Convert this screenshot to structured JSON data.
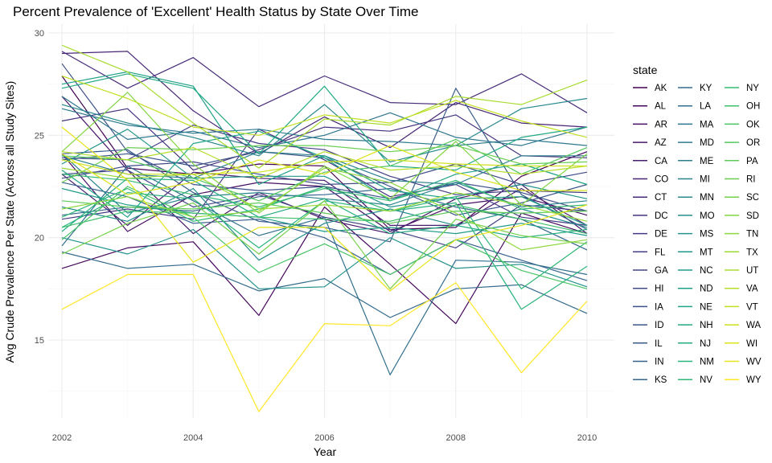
{
  "chart_data": {
    "type": "line",
    "title": "Percent Prevalence of 'Excellent' Health Status by State Over Time",
    "xlabel": "Year",
    "ylabel": "Avg Crude Prevalence Per State (Across all Study Sites)",
    "x": [
      2002,
      2003,
      2004,
      2005,
      2006,
      2007,
      2008,
      2009,
      2010
    ],
    "xticks": [
      "2002",
      "2004",
      "2006",
      "2008",
      "2010"
    ],
    "yticks": [
      "15",
      "20",
      "25",
      "30"
    ],
    "xlim": [
      2002,
      2010
    ],
    "ylim": [
      11.4,
      29.6
    ],
    "grid": true,
    "legend_title": "state",
    "legend_position": "right",
    "series": [
      {
        "name": "AK",
        "color": "#440154",
        "values": [
          27.9,
          23.4,
          23.1,
          23.6,
          23.5,
          20.4,
          20.5,
          23.0,
          24.2
        ]
      },
      {
        "name": "AL",
        "color": "#46085C",
        "values": [
          18.5,
          19.5,
          19.8,
          16.2,
          21.5,
          18.7,
          15.8,
          21.2,
          20.2
        ]
      },
      {
        "name": "AR",
        "color": "#471063",
        "values": [
          24.1,
          20.3,
          22.1,
          22.7,
          22.5,
          20.3,
          21.6,
          22.0,
          21.1
        ]
      },
      {
        "name": "AZ",
        "color": "#481769",
        "values": [
          26.9,
          23.3,
          20.2,
          22.2,
          20.9,
          20.2,
          21.9,
          22.6,
          20.2
        ]
      },
      {
        "name": "CA",
        "color": "#481E70",
        "values": [
          23.1,
          20.6,
          23.2,
          22.9,
          22.8,
          20.6,
          20.6,
          22.4,
          20.6
        ]
      },
      {
        "name": "CO",
        "color": "#482575",
        "values": [
          29.0,
          29.1,
          26.2,
          24.1,
          25.9,
          24.4,
          26.6,
          25.6,
          25.4
        ]
      },
      {
        "name": "CT",
        "color": "#472C7A",
        "values": [
          29.1,
          27.3,
          28.8,
          26.4,
          27.9,
          26.6,
          26.5,
          28.0,
          26.1
        ]
      },
      {
        "name": "DC",
        "color": "#46327E",
        "values": [
          25.7,
          26.3,
          23.3,
          24.3,
          25.4,
          25.2,
          26.0,
          24.0,
          23.9
        ]
      },
      {
        "name": "DE",
        "color": "#453882",
        "values": [
          20.9,
          21.4,
          20.9,
          25.3,
          23.8,
          22.0,
          22.6,
          21.0,
          20.6
        ]
      },
      {
        "name": "FL",
        "color": "#433E85",
        "values": [
          23.9,
          23.8,
          25.5,
          24.6,
          24.3,
          23.0,
          22.1,
          22.3,
          22.2
        ]
      },
      {
        "name": "GA",
        "color": "#424586",
        "values": [
          23.1,
          23.3,
          21.5,
          22.1,
          21.0,
          20.4,
          19.5,
          21.6,
          21.3
        ]
      },
      {
        "name": "HI",
        "color": "#404B88",
        "values": [
          22.9,
          23.5,
          23.7,
          23.1,
          22.6,
          22.7,
          23.6,
          22.6,
          23.2
        ]
      },
      {
        "name": "IA",
        "color": "#3E5089",
        "values": [
          28.5,
          24.2,
          22.6,
          22.3,
          22.5,
          21.9,
          22.7,
          22.2,
          21.3
        ]
      },
      {
        "name": "ID",
        "color": "#3C568A",
        "values": [
          23.8,
          24.1,
          23.5,
          24.2,
          23.9,
          22.5,
          21.1,
          21.7,
          22.6
        ]
      },
      {
        "name": "IL",
        "color": "#3A5C8B",
        "values": [
          24.1,
          24.3,
          22.2,
          20.8,
          20.5,
          19.8,
          27.3,
          22.1,
          20.4
        ]
      },
      {
        "name": "IN",
        "color": "#37618D",
        "values": [
          22.7,
          22.0,
          20.7,
          20.9,
          20.0,
          18.2,
          19.9,
          18.9,
          17.9
        ]
      },
      {
        "name": "KS",
        "color": "#35668D",
        "values": [
          21.1,
          21.5,
          21.3,
          22.0,
          22.1,
          22.4,
          21.5,
          20.9,
          19.4
        ]
      },
      {
        "name": "KY",
        "color": "#336B8D",
        "values": [
          19.3,
          18.5,
          18.7,
          17.4,
          18.0,
          16.1,
          17.5,
          17.7,
          16.3
        ]
      },
      {
        "name": "LA",
        "color": "#31708E",
        "values": [
          19.6,
          23.5,
          21.8,
          20.1,
          21.0,
          13.3,
          18.9,
          18.8,
          18.2
        ]
      },
      {
        "name": "MA",
        "color": "#2F758E",
        "values": [
          26.9,
          24.8,
          25.2,
          24.4,
          25.0,
          26.1,
          24.9,
          24.5,
          25.4
        ]
      },
      {
        "name": "MD",
        "color": "#2D7A8E",
        "values": [
          26.3,
          25.5,
          25.1,
          25.3,
          24.8,
          24.7,
          24.5,
          24.8,
          24.5
        ]
      },
      {
        "name": "ME",
        "color": "#2C7F8E",
        "values": [
          24.0,
          23.1,
          22.9,
          24.2,
          24.0,
          22.8,
          22.6,
          24.0,
          24.0
        ]
      },
      {
        "name": "MI",
        "color": "#2A848E",
        "values": [
          24.1,
          21.2,
          22.0,
          22.2,
          21.9,
          21.6,
          22.7,
          21.5,
          21.8
        ]
      },
      {
        "name": "MN",
        "color": "#28888E",
        "values": [
          26.5,
          25.6,
          24.9,
          24.0,
          26.5,
          23.7,
          24.5,
          26.3,
          26.8
        ]
      },
      {
        "name": "MO",
        "color": "#268D8D",
        "values": [
          21.5,
          20.8,
          22.4,
          18.9,
          20.7,
          21.4,
          20.6,
          21.4,
          20.5
        ]
      },
      {
        "name": "MS",
        "color": "#24928C",
        "values": [
          20.0,
          19.2,
          20.4,
          17.5,
          17.6,
          20.0,
          18.5,
          18.7,
          17.6
        ]
      },
      {
        "name": "MT",
        "color": "#22978B",
        "values": [
          23.6,
          25.3,
          22.9,
          23.0,
          23.0,
          21.5,
          22.0,
          22.6,
          21.9
        ]
      },
      {
        "name": "NC",
        "color": "#209C89",
        "values": [
          22.4,
          21.6,
          21.2,
          21.0,
          20.3,
          20.5,
          20.2,
          20.7,
          20.1
        ]
      },
      {
        "name": "ND",
        "color": "#1FA188",
        "values": [
          27.5,
          28.1,
          27.4,
          22.6,
          24.0,
          22.3,
          21.9,
          22.0,
          20.6
        ]
      },
      {
        "name": "NE",
        "color": "#1FA586",
        "values": [
          23.3,
          21.0,
          24.6,
          25.2,
          23.9,
          21.8,
          23.1,
          23.6,
          22.6
        ]
      },
      {
        "name": "NH",
        "color": "#21AA83",
        "values": [
          27.3,
          28.0,
          27.3,
          24.1,
          27.4,
          23.5,
          23.3,
          24.9,
          25.4
        ]
      },
      {
        "name": "NJ",
        "color": "#25AE80",
        "values": [
          20.3,
          22.9,
          22.8,
          21.0,
          21.9,
          20.2,
          20.6,
          20.0,
          20.4
        ]
      },
      {
        "name": "NM",
        "color": "#2AB37C",
        "values": [
          20.5,
          22.2,
          21.9,
          19.5,
          21.8,
          21.3,
          21.7,
          16.5,
          18.6
        ]
      },
      {
        "name": "NV",
        "color": "#30B777",
        "values": [
          21.0,
          22.4,
          20.8,
          21.4,
          22.5,
          21.3,
          22.0,
          17.5,
          19.8
        ]
      },
      {
        "name": "NY",
        "color": "#36BB72",
        "values": [
          23.1,
          22.8,
          22.1,
          21.5,
          22.4,
          21.8,
          22.8,
          21.4,
          21.6
        ]
      },
      {
        "name": "OH",
        "color": "#3FBF6C",
        "values": [
          20.5,
          21.3,
          21.2,
          21.0,
          20.9,
          20.8,
          21.6,
          20.9,
          20.2
        ]
      },
      {
        "name": "OK",
        "color": "#49C466",
        "values": [
          19.9,
          22.5,
          21.0,
          18.3,
          19.7,
          18.2,
          19.9,
          18.4,
          17.5
        ]
      },
      {
        "name": "OR",
        "color": "#53C75F",
        "values": [
          24.0,
          23.8,
          22.9,
          21.8,
          23.2,
          23.5,
          24.8,
          23.1,
          24.4
        ]
      },
      {
        "name": "PA",
        "color": "#5ECB58",
        "values": [
          21.8,
          21.5,
          21.4,
          21.7,
          21.2,
          20.7,
          21.3,
          21.2,
          21.3
        ]
      },
      {
        "name": "RI",
        "color": "#6ACE51",
        "values": [
          22.7,
          24.4,
          24.3,
          24.5,
          24.5,
          24.2,
          24.5,
          23.6,
          23.7
        ]
      },
      {
        "name": "SC",
        "color": "#76D14A",
        "values": [
          19.2,
          20.7,
          21.7,
          19.2,
          21.8,
          17.5,
          20.9,
          20.1,
          19.7
        ]
      },
      {
        "name": "SD",
        "color": "#82D543",
        "values": [
          24.2,
          27.1,
          23.6,
          21.2,
          23.5,
          21.9,
          24.7,
          21.6,
          24.1
        ]
      },
      {
        "name": "TN",
        "color": "#8ED73C",
        "values": [
          21.4,
          22.0,
          21.0,
          21.3,
          23.4,
          22.7,
          21.2,
          19.4,
          19.9
        ]
      },
      {
        "name": "TX",
        "color": "#9BDA35",
        "values": [
          23.4,
          22.9,
          23.1,
          21.4,
          21.6,
          21.3,
          22.2,
          21.6,
          20.8
        ]
      },
      {
        "name": "UT",
        "color": "#A8DC30",
        "values": [
          29.4,
          28.1,
          25.6,
          23.4,
          25.8,
          25.5,
          26.9,
          26.5,
          27.7
        ]
      },
      {
        "name": "VA",
        "color": "#B5DE2B",
        "values": [
          24.2,
          23.8,
          24.4,
          22.9,
          24.2,
          23.3,
          23.5,
          23.1,
          23.5
        ]
      },
      {
        "name": "VT",
        "color": "#C2DF23",
        "values": [
          27.9,
          26.8,
          25.4,
          25.0,
          26.0,
          25.6,
          26.7,
          25.7,
          24.9
        ]
      },
      {
        "name": "WA",
        "color": "#CFE11C",
        "values": [
          23.8,
          23.1,
          23.1,
          23.2,
          23.7,
          23.8,
          23.6,
          23.5,
          23.5
        ]
      },
      {
        "name": "WI",
        "color": "#DCE319",
        "values": [
          24.1,
          22.1,
          22.7,
          23.8,
          23.1,
          24.5,
          23.2,
          22.3,
          22.3
        ]
      },
      {
        "name": "WV",
        "color": "#E8E419",
        "values": [
          25.4,
          22.8,
          18.8,
          20.5,
          20.5,
          17.4,
          19.9,
          20.6,
          21.6
        ]
      },
      {
        "name": "WY",
        "color": "#FDE725",
        "values": [
          16.5,
          18.2,
          18.2,
          11.5,
          15.8,
          15.7,
          17.8,
          13.4,
          16.9
        ]
      }
    ]
  }
}
